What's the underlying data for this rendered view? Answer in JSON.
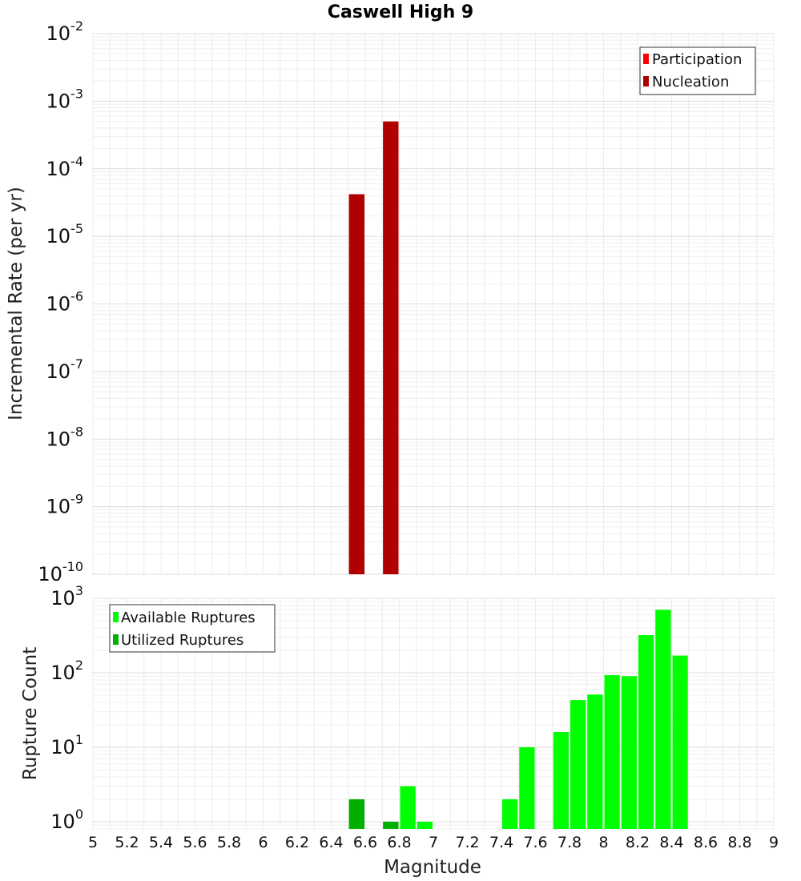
{
  "chart_data": {
    "title": "Caswell High 9",
    "xlabel": "Magnitude",
    "xlim": [
      5,
      9
    ],
    "x_ticks": [
      "5",
      "5.2",
      "5.4",
      "5.6",
      "5.8",
      "6",
      "6.2",
      "6.4",
      "6.6",
      "6.8",
      "7",
      "7.2",
      "7.4",
      "7.6",
      "7.8",
      "8",
      "8.2",
      "8.4",
      "8.6",
      "8.8",
      "9"
    ],
    "bar_width": 0.1,
    "panels": [
      {
        "id": "rate",
        "type": "bar",
        "ylabel": "Incremental Rate (per yr)",
        "yscale": "log",
        "ylim": [
          1e-10,
          0.01
        ],
        "y_ticks": [
          {
            "base": "10",
            "exp": "-10"
          },
          {
            "base": "10",
            "exp": "-9"
          },
          {
            "base": "10",
            "exp": "-8"
          },
          {
            "base": "10",
            "exp": "-7"
          },
          {
            "base": "10",
            "exp": "-6"
          },
          {
            "base": "10",
            "exp": "-5"
          },
          {
            "base": "10",
            "exp": "-4"
          },
          {
            "base": "10",
            "exp": "-3"
          },
          {
            "base": "10",
            "exp": "-2"
          }
        ],
        "legend_position": "top-right",
        "series": [
          {
            "name": "Participation",
            "color": "#ff0000",
            "x": [
              6.55,
              6.75
            ],
            "values": [
              4.2e-05,
              0.0005
            ]
          },
          {
            "name": "Nucleation",
            "color": "#b00000",
            "x": [
              6.55,
              6.75
            ],
            "values": [
              4.2e-05,
              0.0005
            ]
          }
        ]
      },
      {
        "id": "count",
        "type": "bar",
        "ylabel": "Rupture Count",
        "yscale": "log",
        "ylim": [
          0.8,
          1000
        ],
        "y_ticks": [
          {
            "base": "10",
            "exp": "0"
          },
          {
            "base": "10",
            "exp": "1"
          },
          {
            "base": "10",
            "exp": "2"
          },
          {
            "base": "10",
            "exp": "3"
          }
        ],
        "legend_position": "top-left",
        "series": [
          {
            "name": "Available Ruptures",
            "color": "#00ff00",
            "x": [
              6.55,
              6.75,
              6.85,
              6.95,
              7.45,
              7.55,
              7.75,
              7.85,
              7.95,
              8.05,
              8.15,
              8.25,
              8.35,
              8.45
            ],
            "values": [
              2,
              1,
              3,
              1,
              2,
              10,
              16,
              43,
              51,
              93,
              90,
              320,
              700,
              170
            ]
          },
          {
            "name": "Utilized Ruptures",
            "color": "#00b000",
            "x": [
              6.55,
              6.75
            ],
            "values": [
              2,
              1
            ]
          }
        ]
      }
    ]
  }
}
